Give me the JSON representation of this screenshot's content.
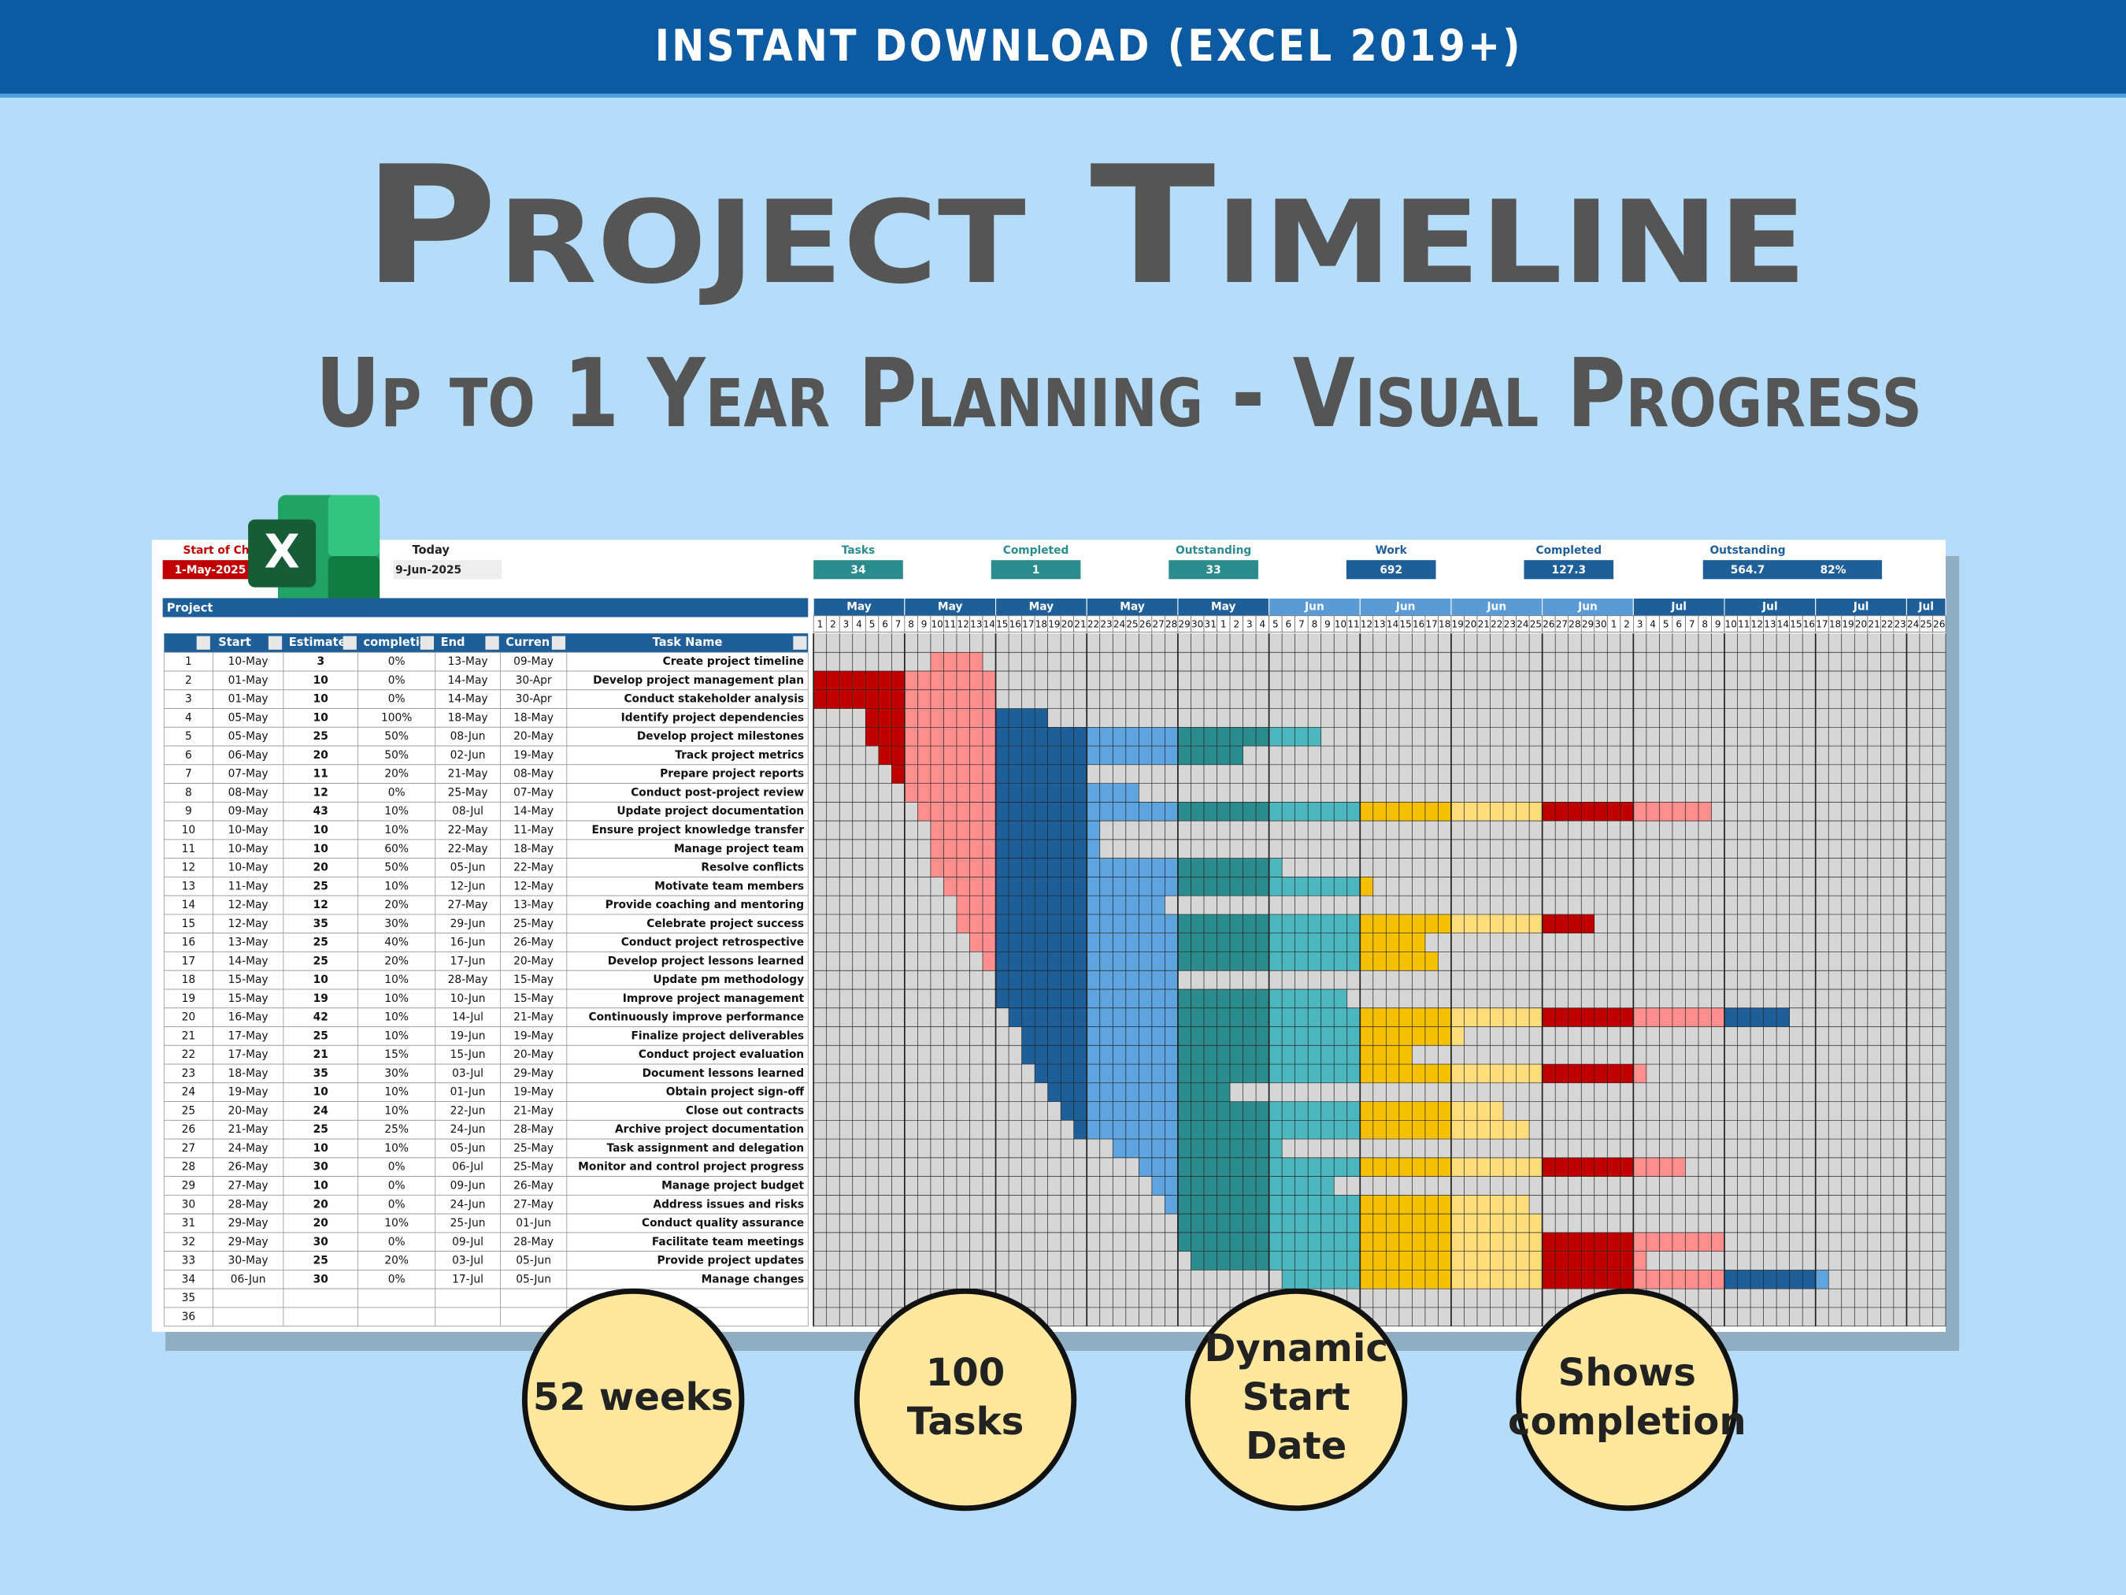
{
  "banner": "INSTANT DOWNLOAD (EXCEL 2019+)",
  "title": "Project Timeline",
  "subtitle": "Up to 1 Year Planning - Visual Progress",
  "sheet": {
    "excel_icon": "X",
    "start_label": "Start of Ch",
    "start_value": "1-May-2025",
    "today_label": "Today",
    "today_value": "9-Jun-2025",
    "stats": [
      {
        "label": "Tasks",
        "value": 34
      },
      {
        "label": "Completed",
        "value": 1
      },
      {
        "label": "Outstanding",
        "value": 33
      },
      {
        "label": "Work",
        "value": 692
      },
      {
        "label": "Completed",
        "value": 127.3
      },
      {
        "label": "Outstanding",
        "value": 564.7,
        "extra": "82%"
      }
    ],
    "project_label": "Project",
    "columns": [
      "Start",
      "Estimate",
      "completio",
      "End",
      "Curren",
      "Task Name"
    ],
    "rows": [
      [
        1,
        "10-May",
        3,
        "0%",
        "13-May",
        "09-May",
        "Create project timeline"
      ],
      [
        2,
        "01-May",
        10,
        "0%",
        "14-May",
        "30-Apr",
        "Develop project management plan"
      ],
      [
        3,
        "01-May",
        10,
        "0%",
        "14-May",
        "30-Apr",
        "Conduct stakeholder analysis"
      ],
      [
        4,
        "05-May",
        10,
        "100%",
        "18-May",
        "18-May",
        "Identify project dependencies"
      ],
      [
        5,
        "05-May",
        25,
        "50%",
        "08-Jun",
        "20-May",
        "Develop project milestones"
      ],
      [
        6,
        "06-May",
        20,
        "50%",
        "02-Jun",
        "19-May",
        "Track project metrics"
      ],
      [
        7,
        "07-May",
        11,
        "20%",
        "21-May",
        "08-May",
        "Prepare project reports"
      ],
      [
        8,
        "08-May",
        12,
        "0%",
        "25-May",
        "07-May",
        "Conduct post-project review"
      ],
      [
        9,
        "09-May",
        43,
        "10%",
        "08-Jul",
        "14-May",
        "Update project documentation"
      ],
      [
        10,
        "10-May",
        10,
        "10%",
        "22-May",
        "11-May",
        "Ensure project knowledge transfer"
      ],
      [
        11,
        "10-May",
        10,
        "60%",
        "22-May",
        "18-May",
        "Manage project team"
      ],
      [
        12,
        "10-May",
        20,
        "50%",
        "05-Jun",
        "22-May",
        "Resolve conflicts"
      ],
      [
        13,
        "11-May",
        25,
        "10%",
        "12-Jun",
        "12-May",
        "Motivate team members"
      ],
      [
        14,
        "12-May",
        12,
        "20%",
        "27-May",
        "13-May",
        "Provide coaching and mentoring"
      ],
      [
        15,
        "12-May",
        35,
        "30%",
        "29-Jun",
        "25-May",
        "Celebrate project success"
      ],
      [
        16,
        "13-May",
        25,
        "40%",
        "16-Jun",
        "26-May",
        "Conduct project retrospective"
      ],
      [
        17,
        "14-May",
        25,
        "20%",
        "17-Jun",
        "20-May",
        "Develop project lessons learned"
      ],
      [
        18,
        "15-May",
        10,
        "10%",
        "28-May",
        "15-May",
        "Update pm methodology"
      ],
      [
        19,
        "15-May",
        19,
        "10%",
        "10-Jun",
        "15-May",
        "Improve project management"
      ],
      [
        20,
        "16-May",
        42,
        "10%",
        "14-Jul",
        "21-May",
        "Continuously improve performance"
      ],
      [
        21,
        "17-May",
        25,
        "10%",
        "19-Jun",
        "19-May",
        "Finalize project deliverables"
      ],
      [
        22,
        "17-May",
        21,
        "15%",
        "15-Jun",
        "20-May",
        "Conduct project evaluation"
      ],
      [
        23,
        "18-May",
        35,
        "30%",
        "03-Jul",
        "29-May",
        "Document lessons learned"
      ],
      [
        24,
        "19-May",
        10,
        "10%",
        "01-Jun",
        "19-May",
        "Obtain project sign-off"
      ],
      [
        25,
        "20-May",
        24,
        "10%",
        "22-Jun",
        "21-May",
        "Close out contracts"
      ],
      [
        26,
        "21-May",
        25,
        "25%",
        "24-Jun",
        "28-May",
        "Archive project documentation"
      ],
      [
        27,
        "24-May",
        10,
        "10%",
        "05-Jun",
        "25-May",
        "Task assignment and delegation"
      ],
      [
        28,
        "26-May",
        30,
        "0%",
        "06-Jul",
        "25-May",
        "Monitor and control project progress"
      ],
      [
        29,
        "27-May",
        10,
        "0%",
        "09-Jun",
        "26-May",
        "Manage project budget"
      ],
      [
        30,
        "28-May",
        20,
        "0%",
        "24-Jun",
        "27-May",
        "Address issues and risks"
      ],
      [
        31,
        "29-May",
        20,
        "10%",
        "25-Jun",
        "01-Jun",
        "Conduct quality assurance"
      ],
      [
        32,
        "29-May",
        30,
        "0%",
        "09-Jul",
        "28-May",
        "Facilitate team meetings"
      ],
      [
        33,
        "30-May",
        25,
        "20%",
        "03-Jul",
        "05-Jun",
        "Provide project updates"
      ],
      [
        34,
        "06-Jun",
        30,
        "0%",
        "17-Jul",
        "05-Jun",
        "Manage changes"
      ]
    ],
    "blank_rows": [
      35,
      36
    ],
    "week_labels": [
      "May",
      "May",
      "May",
      "May",
      "May",
      "Jun",
      "Jun",
      "Jun",
      "Jun",
      "Jul",
      "Jul",
      "Jul",
      "Jul"
    ],
    "days": [
      1,
      2,
      3,
      4,
      5,
      6,
      7,
      8,
      9,
      10,
      11,
      12,
      13,
      14,
      15,
      16,
      17,
      18,
      19,
      20,
      21,
      22,
      23,
      24,
      25,
      26,
      27,
      28,
      29,
      30,
      31,
      1,
      2,
      3,
      4,
      5,
      6,
      7,
      8,
      9,
      10,
      11,
      12,
      13,
      14,
      15,
      16,
      17,
      18,
      19,
      20,
      21,
      22,
      23,
      24,
      25,
      26,
      27,
      28,
      29,
      30,
      1,
      2,
      3,
      4,
      5,
      6,
      7,
      8,
      9,
      10,
      11,
      12,
      13,
      14,
      15,
      16,
      17,
      18,
      19,
      20,
      21,
      22,
      23,
      24,
      25,
      26
    ]
  },
  "badges": [
    [
      "52 weeks"
    ],
    [
      "100",
      "Tasks"
    ],
    [
      "Dynamic",
      "Start",
      "Date"
    ],
    [
      "Shows",
      "completion"
    ]
  ]
}
